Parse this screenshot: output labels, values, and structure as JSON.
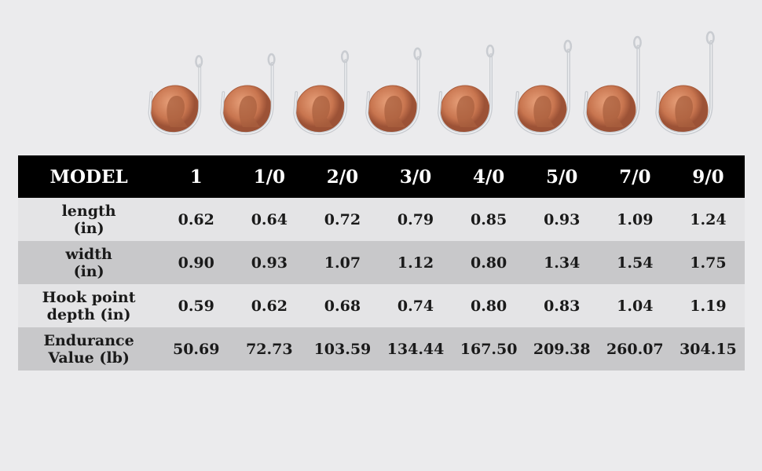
{
  "table": {
    "header": {
      "label": "MODEL",
      "models": [
        "1",
        "1/0",
        "2/0",
        "3/0",
        "4/0",
        "5/0",
        "7/0",
        "9/0"
      ]
    },
    "rows": [
      {
        "label_lines": [
          "length",
          "(in)"
        ],
        "values": [
          "0.62",
          "0.64",
          "0.72",
          "0.79",
          "0.85",
          "0.93",
          "1.09",
          "1.24"
        ]
      },
      {
        "label_lines": [
          "width",
          "(in)"
        ],
        "values": [
          "0.90",
          "0.93",
          "1.07",
          "1.12",
          "0.80",
          "1.34",
          "1.54",
          "1.75"
        ]
      },
      {
        "label_lines": [
          "Hook point",
          "depth (in)"
        ],
        "values": [
          "0.59",
          "0.62",
          "0.68",
          "0.74",
          "0.80",
          "0.83",
          "1.04",
          "1.19"
        ]
      },
      {
        "label_lines": [
          "Endurance",
          "Value (lb)"
        ],
        "values": [
          "50.69",
          "72.73",
          "103.59",
          "134.44",
          "167.50",
          "209.38",
          "260.07",
          "304.15"
        ]
      }
    ]
  },
  "colors": {
    "background": "#ebebed",
    "header_bg": "#000000",
    "row_light": "#e4e4e6",
    "row_dark": "#c8c8ca",
    "penny": "#c8754f",
    "hook_metal": "#c9ccd1"
  },
  "hooks_icons": [
    "hook-with-penny-icon"
  ]
}
